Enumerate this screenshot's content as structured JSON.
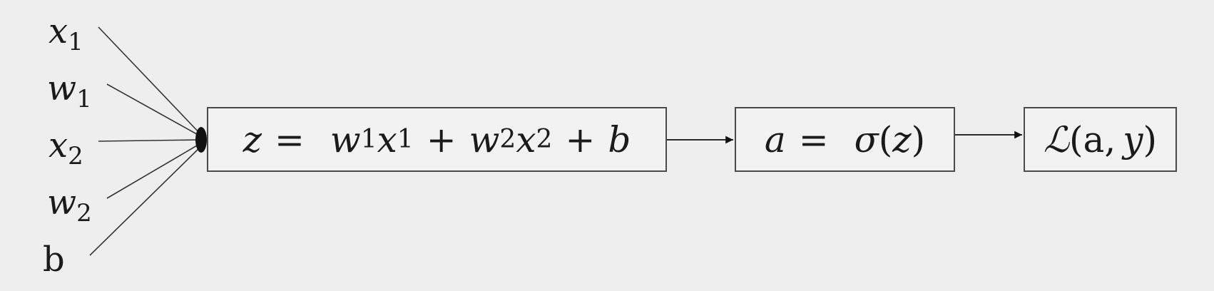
{
  "inputs": [
    {
      "var": "x",
      "sub": "1"
    },
    {
      "var": "w",
      "sub": "1"
    },
    {
      "var": "x",
      "sub": "2"
    },
    {
      "var": "w",
      "sub": "2"
    },
    {
      "var": "b",
      "sub": ""
    }
  ],
  "nodes": {
    "linear": {
      "lhs": "z",
      "eq": "=",
      "t1": "w",
      "t1s": "1",
      "t2": "x",
      "t2s": "1",
      "plus1": "+",
      "t3": "w",
      "t3s": "2",
      "t4": "x",
      "t4s": "2",
      "plus2": "+",
      "bias": "b"
    },
    "activation": {
      "lhs": "a",
      "eq": "=",
      "fn": "σ",
      "open": "(",
      "arg": "z",
      "close": ")"
    },
    "loss": {
      "fn": "ℒ",
      "open": "(",
      "arg1": "a",
      "comma": ",",
      "arg2": "y",
      "close": ")"
    }
  },
  "colors": {
    "background": "#eeeeee",
    "stroke": "#4a4a4a",
    "arrow": "#111111"
  }
}
